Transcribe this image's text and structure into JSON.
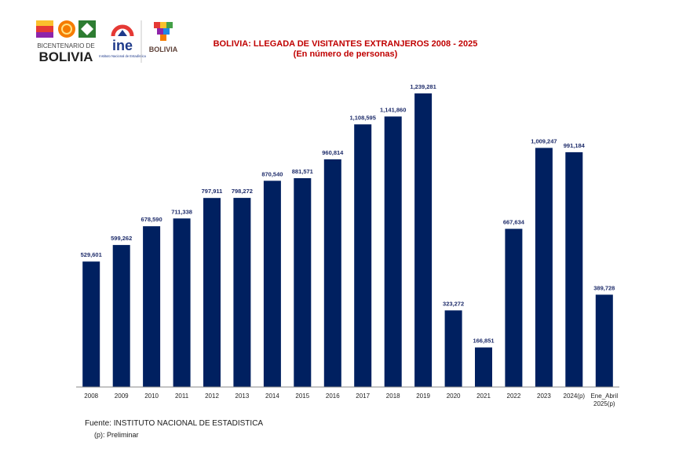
{
  "logos": {
    "bicentenario_line1": "BICENTENARIO DE",
    "bicentenario_line2": "BOLIVIA",
    "ine_name": "ine",
    "ine_subtitle": "Instituto Nacional de Estadística",
    "bolivia_seal": "BOLIVIA"
  },
  "title": "BOLIVIA: LLEGADA DE VISITANTES EXTRANJEROS 2008 - 2025",
  "subtitle": "(En número de personas)",
  "footer": {
    "source": "Fuente: INSTITUTO NACIONAL DE ESTADISTICA",
    "note": "(p): Preliminar"
  },
  "chart_data": {
    "type": "bar",
    "categories": [
      "2008",
      "2009",
      "2010",
      "2011",
      "2012",
      "2013",
      "2014",
      "2015",
      "2016",
      "2017",
      "2018",
      "2019",
      "2020",
      "2021",
      "2022",
      "2023",
      "2024(p)",
      "Ene_Abril 2025(p)"
    ],
    "category_lines": [
      [
        "2008"
      ],
      [
        "2009"
      ],
      [
        "2010"
      ],
      [
        "2011"
      ],
      [
        "2012"
      ],
      [
        "2013"
      ],
      [
        "2014"
      ],
      [
        "2015"
      ],
      [
        "2016"
      ],
      [
        "2017"
      ],
      [
        "2018"
      ],
      [
        "2019"
      ],
      [
        "2020"
      ],
      [
        "2021"
      ],
      [
        "2022"
      ],
      [
        "2023"
      ],
      [
        "2024(p)"
      ],
      [
        "Ene_Abril",
        "2025(p)"
      ]
    ],
    "values": [
      529601,
      599262,
      678590,
      711338,
      797911,
      798272,
      870540,
      881571,
      960814,
      1108595,
      1141860,
      1239281,
      323272,
      166851,
      667634,
      1009247,
      991184,
      389728
    ],
    "value_labels": [
      "529,601",
      "599,262",
      "678,590",
      "711,338",
      "797,911",
      "798,272",
      "870,540",
      "881,571",
      "960,814",
      "1,108,595",
      "1,141,860",
      "1,239,281",
      "323,272",
      "166,851",
      "667,634",
      "1,009,247",
      "991,184",
      "389,728"
    ],
    "ylim": [
      0,
      1239281
    ],
    "bar_color": "#002060",
    "label_color": "#1f2d6b",
    "grid": false,
    "legend": "none"
  }
}
